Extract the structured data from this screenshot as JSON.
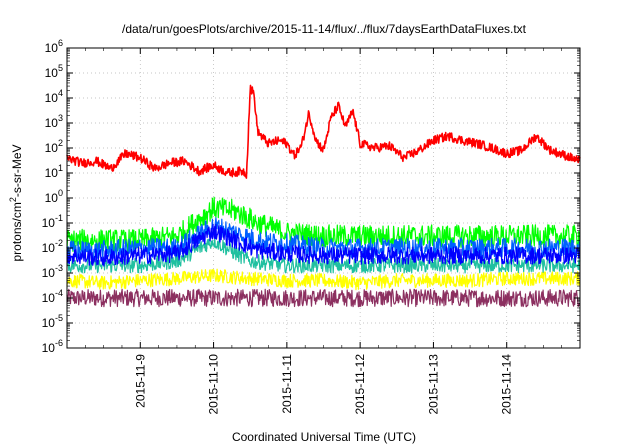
{
  "chart_data": {
    "type": "line",
    "title": "/data/run/goesPlots/archive/2015-11-14/flux/../flux/7daysEarthDataFluxes.txt",
    "xlabel": "Coordinated Universal Time (UTC)",
    "ylabel_parts": {
      "main": "protons/cm",
      "sup": "2",
      "rest": "-s-sr-MeV"
    },
    "x_ticks": [
      "2015-11-9",
      "2015-11-10",
      "2015-11-11",
      "2015-11-12",
      "2015-11-13",
      "2015-11-14"
    ],
    "x_range_days": [
      0,
      7
    ],
    "x_tick_day": [
      1,
      2,
      3,
      4,
      5,
      6
    ],
    "y_scale": "log",
    "y_exp_range": [
      -6,
      6
    ],
    "y_tick_exps": [
      -6,
      -5,
      -4,
      -3,
      -2,
      -1,
      0,
      1,
      2,
      3,
      4,
      5,
      6
    ],
    "grid": true,
    "legend": "none",
    "series": [
      {
        "color": "#8c3060",
        "points": [
          [
            0,
            0.0001
          ],
          [
            0.5,
            0.0001
          ],
          [
            1,
            0.0001
          ],
          [
            1.5,
            0.0001
          ],
          [
            2,
            0.0001
          ],
          [
            2.5,
            0.0001
          ],
          [
            3,
            0.0001
          ],
          [
            3.5,
            0.0001
          ],
          [
            4,
            0.0001
          ],
          [
            4.5,
            0.0001
          ],
          [
            5,
            0.0001
          ],
          [
            5.5,
            0.0001
          ],
          [
            6,
            0.0001
          ]
        ]
      },
      {
        "color": "#ffff00",
        "points": [
          [
            0,
            0.0005
          ],
          [
            0.5,
            0.0004
          ],
          [
            1,
            0.0005
          ],
          [
            1.5,
            0.0006
          ],
          [
            2,
            0.0008
          ],
          [
            2.5,
            0.0006
          ],
          [
            3,
            0.0005
          ],
          [
            3.5,
            0.0005
          ],
          [
            4,
            0.0004
          ],
          [
            4.5,
            0.0005
          ],
          [
            5,
            0.0005
          ],
          [
            5.5,
            0.0005
          ],
          [
            6,
            0.0006
          ]
        ]
      },
      {
        "color": "#20c0a0",
        "points": [
          [
            0,
            0.002
          ],
          [
            0.5,
            0.002
          ],
          [
            1,
            0.002
          ],
          [
            1.5,
            0.003
          ],
          [
            2,
            0.02
          ],
          [
            2.3,
            0.006
          ],
          [
            2.5,
            0.003
          ],
          [
            3,
            0.002
          ],
          [
            3.5,
            0.002
          ],
          [
            4,
            0.002
          ],
          [
            4.5,
            0.002
          ],
          [
            5,
            0.002
          ],
          [
            5.5,
            0.002
          ],
          [
            6,
            0.002
          ]
        ]
      },
      {
        "color": "#00ff00",
        "points": [
          [
            0,
            0.02
          ],
          [
            0.5,
            0.02
          ],
          [
            1,
            0.02
          ],
          [
            1.5,
            0.03
          ],
          [
            2,
            0.4
          ],
          [
            2.3,
            0.3
          ],
          [
            2.6,
            0.1
          ],
          [
            3,
            0.04
          ],
          [
            3.5,
            0.03
          ],
          [
            4,
            0.03
          ],
          [
            4.5,
            0.03
          ],
          [
            5,
            0.03
          ],
          [
            5.5,
            0.03
          ],
          [
            6,
            0.03
          ]
        ]
      },
      {
        "color": "#0060ff",
        "points": [
          [
            0,
            0.008
          ],
          [
            0.5,
            0.008
          ],
          [
            1,
            0.01
          ],
          [
            1.5,
            0.01
          ],
          [
            2,
            0.08
          ],
          [
            2.3,
            0.04
          ],
          [
            2.6,
            0.02
          ],
          [
            3,
            0.015
          ],
          [
            3.5,
            0.01
          ],
          [
            4,
            0.01
          ],
          [
            4.5,
            0.01
          ],
          [
            5,
            0.01
          ],
          [
            5.5,
            0.01
          ],
          [
            6,
            0.01
          ]
        ]
      },
      {
        "color": "#0000ff",
        "points": [
          [
            0,
            0.005
          ],
          [
            0.5,
            0.004
          ],
          [
            1,
            0.005
          ],
          [
            1.5,
            0.006
          ],
          [
            2,
            0.05
          ],
          [
            2.3,
            0.02
          ],
          [
            2.6,
            0.008
          ],
          [
            3,
            0.006
          ],
          [
            3.5,
            0.005
          ],
          [
            4,
            0.005
          ],
          [
            4.5,
            0.005
          ],
          [
            5,
            0.005
          ],
          [
            5.5,
            0.005
          ],
          [
            6,
            0.005
          ]
        ]
      },
      {
        "color": "#ff0000",
        "points": [
          [
            0,
            40
          ],
          [
            0.2,
            25
          ],
          [
            0.4,
            30
          ],
          [
            0.6,
            15
          ],
          [
            0.8,
            60
          ],
          [
            1,
            40
          ],
          [
            1.2,
            15
          ],
          [
            1.4,
            25
          ],
          [
            1.6,
            30
          ],
          [
            1.8,
            12
          ],
          [
            2,
            20
          ],
          [
            2.2,
            10
          ],
          [
            2.4,
            12
          ],
          [
            2.45,
            9
          ],
          [
            2.5,
            25000
          ],
          [
            2.55,
            15000
          ],
          [
            2.6,
            500
          ],
          [
            2.65,
            300
          ],
          [
            2.75,
            150
          ],
          [
            2.9,
            200
          ],
          [
            3,
            150
          ],
          [
            3.1,
            50
          ],
          [
            3.2,
            120
          ],
          [
            3.3,
            2500
          ],
          [
            3.4,
            200
          ],
          [
            3.5,
            80
          ],
          [
            3.6,
            1500
          ],
          [
            3.7,
            5000
          ],
          [
            3.8,
            700
          ],
          [
            3.9,
            3000
          ],
          [
            4,
            150
          ],
          [
            4.2,
            100
          ],
          [
            4.4,
            120
          ],
          [
            4.6,
            40
          ],
          [
            4.8,
            80
          ],
          [
            5,
            200
          ],
          [
            5.2,
            300
          ],
          [
            5.4,
            200
          ],
          [
            5.6,
            150
          ],
          [
            5.8,
            100
          ],
          [
            6,
            60
          ],
          [
            6.2,
            80
          ],
          [
            6.4,
            300
          ],
          [
            6.6,
            80
          ],
          [
            6.8,
            50
          ],
          [
            7,
            30
          ]
        ]
      }
    ]
  }
}
